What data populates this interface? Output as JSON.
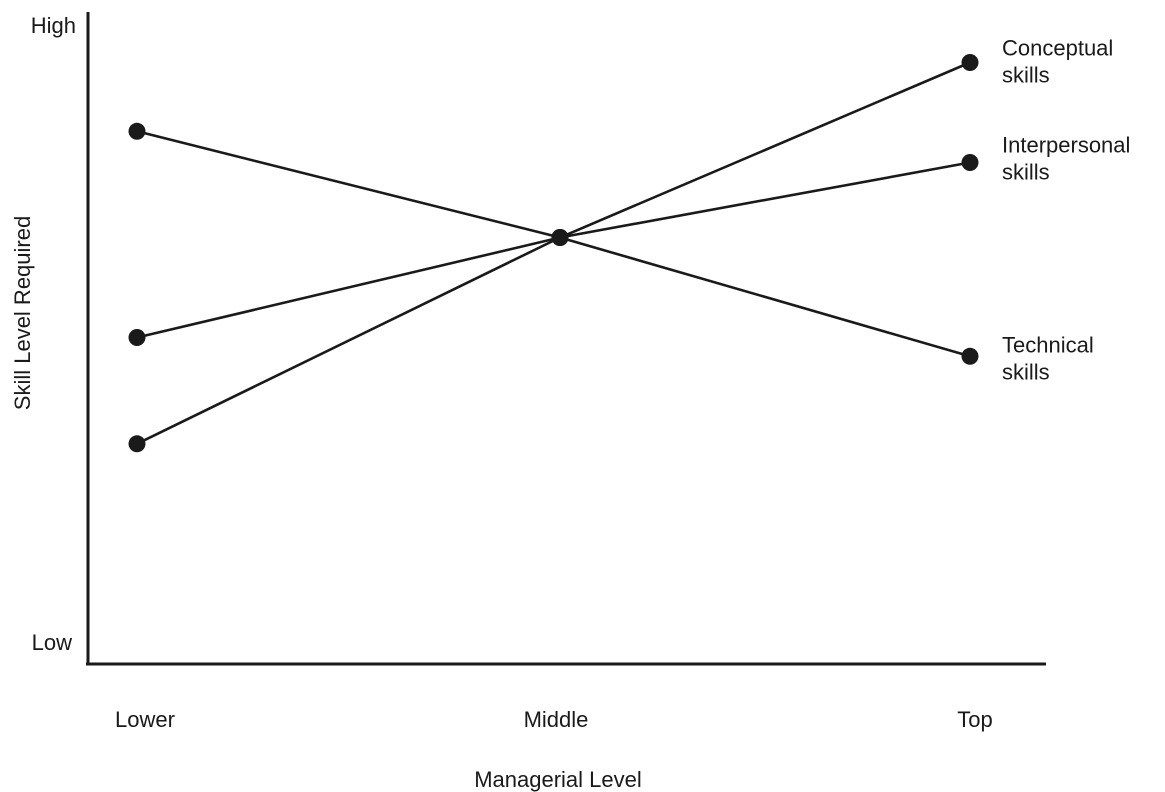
{
  "chart_data": {
    "type": "line",
    "title": "",
    "xlabel": "Managerial Level",
    "ylabel": "Skill Level Required",
    "categories": [
      "Lower",
      "Middle",
      "Top"
    ],
    "y_tick_labels": {
      "high": "High",
      "low": "Low"
    },
    "ylim": [
      0,
      100
    ],
    "grid": false,
    "legend": "inline-right",
    "series": [
      {
        "name": [
          "Conceptual",
          "skills"
        ],
        "values": [
          33,
          66,
          94
        ]
      },
      {
        "name": [
          "Interpersonal",
          "skills"
        ],
        "values": [
          50,
          66,
          78
        ]
      },
      {
        "name": [
          "Technical",
          "skills"
        ],
        "values": [
          83,
          66,
          47
        ]
      }
    ],
    "colors": {
      "ink": "#1a1a1a",
      "background": "#ffffff"
    }
  }
}
